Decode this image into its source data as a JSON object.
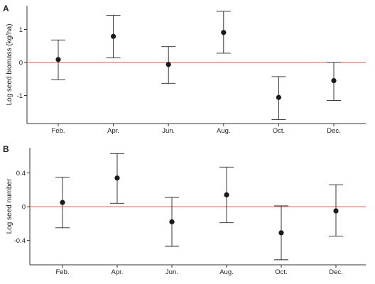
{
  "chart_data": [
    {
      "type": "scatter",
      "panel": "A",
      "title": "",
      "xlabel": "",
      "ylabel": "Log seed biomass (kg/ha)",
      "categories": [
        "Feb.",
        "Apr.",
        "Jun.",
        "Aug.",
        "Oct.",
        "Dec."
      ],
      "values": [
        0.09,
        0.79,
        -0.06,
        0.91,
        -1.06,
        -0.55
      ],
      "error_low": [
        -0.52,
        0.14,
        -0.63,
        0.28,
        -1.73,
        -1.15
      ],
      "error_high": [
        0.68,
        1.43,
        0.48,
        1.55,
        -0.43,
        0.0
      ],
      "yticks": [
        1,
        0,
        -1
      ],
      "ytick_labels": [
        "1",
        "0",
        "-1"
      ],
      "ylim": [
        -1.85,
        1.72
      ],
      "reference_line": 0,
      "reference_color": "#e8564a",
      "grid": false
    },
    {
      "type": "scatter",
      "panel": "B",
      "title": "",
      "xlabel": "",
      "ylabel": "Log seed number",
      "categories": [
        "Feb.",
        "Apr.",
        "Jun.",
        "Aug.",
        "Oct.",
        "Dec."
      ],
      "values": [
        0.05,
        0.34,
        -0.18,
        0.14,
        -0.31,
        -0.05
      ],
      "error_low": [
        -0.25,
        0.04,
        -0.47,
        -0.19,
        -0.63,
        -0.35
      ],
      "error_high": [
        0.35,
        0.63,
        0.11,
        0.47,
        0.01,
        0.26
      ],
      "yticks": [
        0.4,
        0,
        -0.4
      ],
      "ytick_labels": [
        "0.4",
        "0",
        "-0.4"
      ],
      "ylim": [
        -0.69,
        0.7
      ],
      "reference_line": 0,
      "reference_color": "#e8564a",
      "grid": false
    }
  ]
}
